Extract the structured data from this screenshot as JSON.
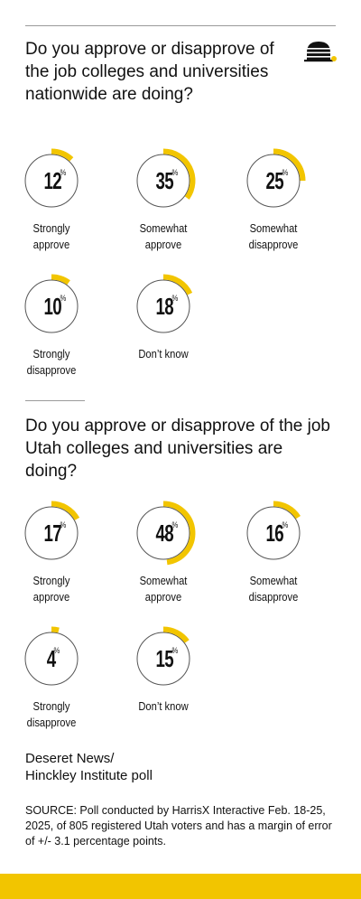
{
  "colors": {
    "accent": "#f2c500",
    "ring": "#555555",
    "text": "#111111"
  },
  "logo": {
    "icon": "beehive-icon"
  },
  "question1": {
    "title": "Do you approve or disapprove of the job colleges and universities nationwide are doing?"
  },
  "question2": {
    "title": "Do you approve or disapprove of the job Utah colleges and universities are doing?"
  },
  "chart_data": [
    {
      "type": "pie",
      "title": "Do you approve or disapprove of the job colleges and universities nationwide are doing?",
      "unit": "%",
      "categories": [
        "Strongly approve",
        "Somewhat approve",
        "Somewhat disapprove",
        "Strongly disapprove",
        "Don't know"
      ],
      "values": [
        12,
        35,
        25,
        10,
        18
      ]
    },
    {
      "type": "pie",
      "title": "Do you approve or disapprove of the job Utah colleges and universities are doing?",
      "unit": "%",
      "categories": [
        "Strongly approve",
        "Somewhat approve",
        "Somewhat disapprove",
        "Strongly disapprove",
        "Don't know"
      ],
      "values": [
        17,
        48,
        16,
        4,
        15
      ]
    }
  ],
  "items": [
    {
      "value": "12",
      "pct": "%",
      "label1": "Strongly",
      "label2": "approve"
    },
    {
      "value": "35",
      "pct": "%",
      "label1": "Somewhat",
      "label2": "approve"
    },
    {
      "value": "25",
      "pct": "%",
      "label1": "Somewhat",
      "label2": "disapprove"
    },
    {
      "value": "10",
      "pct": "%",
      "label1": "Strongly",
      "label2": "disapprove"
    },
    {
      "value": "18",
      "pct": "%",
      "label1": "Don’t know",
      "label2": ""
    },
    {
      "value": "17",
      "pct": "%",
      "label1": "Strongly",
      "label2": "approve"
    },
    {
      "value": "48",
      "pct": "%",
      "label1": "Somewhat",
      "label2": "approve"
    },
    {
      "value": "16",
      "pct": "%",
      "label1": "Somewhat",
      "label2": "disapprove"
    },
    {
      "value": "4",
      "pct": "%",
      "label1": "Strongly",
      "label2": "disapprove"
    },
    {
      "value": "15",
      "pct": "%",
      "label1": "Don’t know",
      "label2": ""
    }
  ],
  "credit": {
    "line1": "Deseret News/",
    "line2": "Hinckley Institute poll"
  },
  "source": "SOURCE: Poll conducted by HarrisX Interactive Feb. 18-25, 2025, of 805 registered Utah voters and has a margin of error of +/- 3.1 percentage points."
}
